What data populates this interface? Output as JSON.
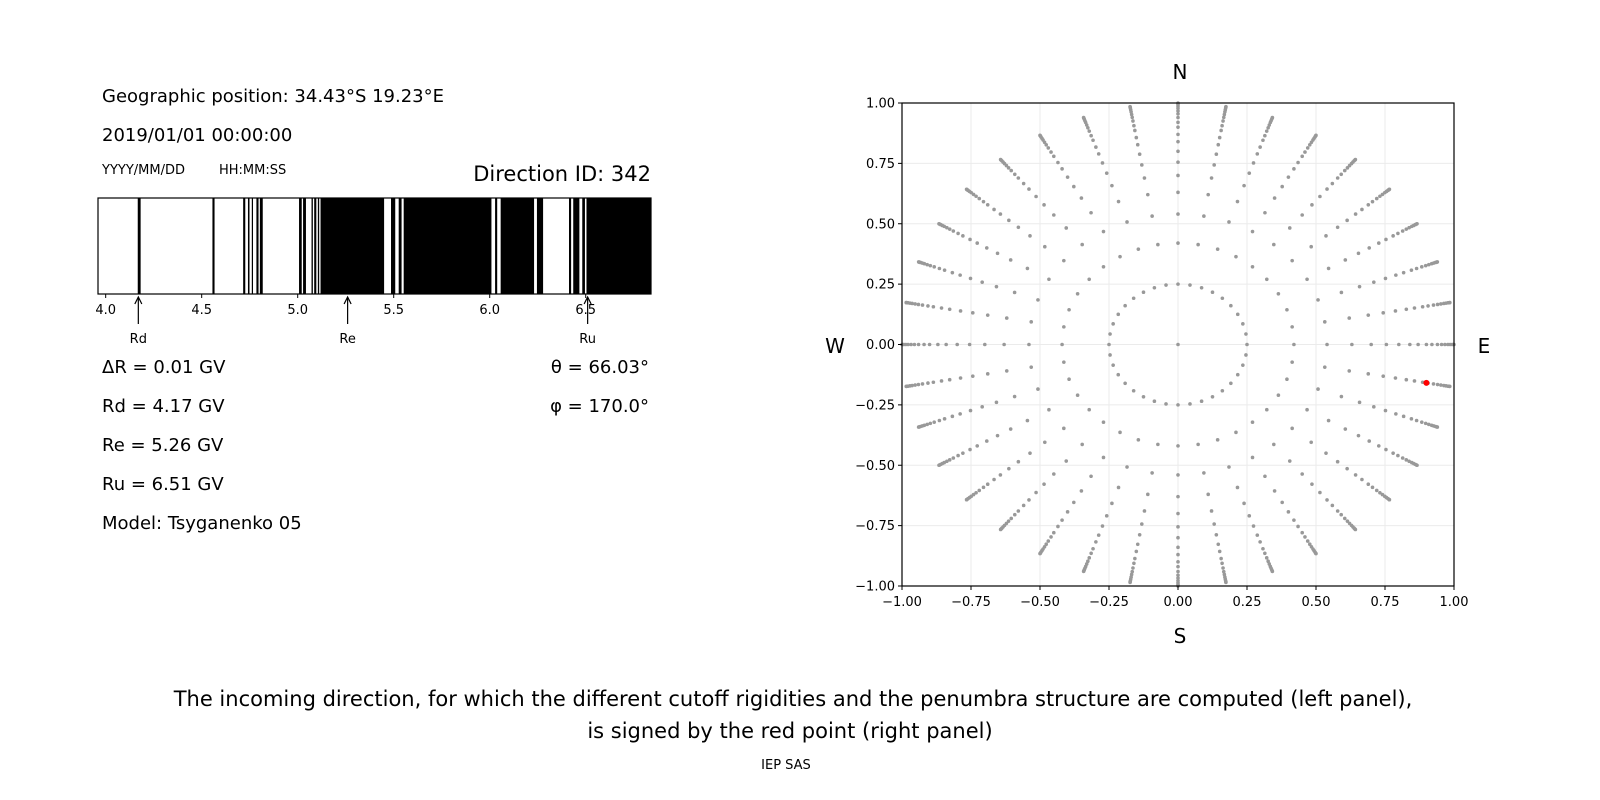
{
  "left_panel": {
    "geo_position": "Geographic position: 34.43°S 19.23°E",
    "datetime": "2019/01/01 00:00:00",
    "date_format": "YYYY/MM/DD",
    "time_format": "HH:MM:SS",
    "direction_id": "Direction ID: 342",
    "delta_r": "ΔR = 0.01 GV",
    "rd": "Rd = 4.17 GV",
    "re": "Re = 5.26 GV",
    "ru": "Ru = 6.51 GV",
    "model": "Model: Tsyganenko 05",
    "theta": "θ = 66.03°",
    "phi": "φ = 170.0°"
  },
  "compass": {
    "n": "N",
    "s": "S",
    "w": "W",
    "e": "E"
  },
  "caption": {
    "line1": "The incoming direction, for which the different cutoff rigidities and the penumbra structure are computed (left panel),",
    "line2": "is signed by the red point (right panel)",
    "footer": "IEP SAS"
  },
  "chart_data": [
    {
      "type": "penumbra-bar",
      "xlabel": "",
      "xlim": [
        3.96,
        6.84
      ],
      "xticks": [
        "4.0",
        "4.5",
        "5.0",
        "5.5",
        "6.0",
        "6.5"
      ],
      "tick_values": [
        4.0,
        4.5,
        5.0,
        5.5,
        6.0,
        6.5
      ],
      "forbidden_intervals_gv": [
        [
          4.167,
          4.182
        ],
        [
          4.556,
          4.567
        ],
        [
          4.716,
          4.727
        ],
        [
          4.741,
          4.749
        ],
        [
          4.761,
          4.767
        ],
        [
          4.785,
          4.796
        ],
        [
          4.803,
          4.818
        ],
        [
          5.007,
          5.021
        ],
        [
          5.028,
          5.043
        ],
        [
          5.072,
          5.079
        ],
        [
          5.086,
          5.097
        ],
        [
          5.105,
          5.112
        ],
        [
          5.119,
          5.45
        ],
        [
          5.486,
          5.508
        ],
        [
          5.526,
          5.541
        ],
        [
          5.552,
          6.009
        ],
        [
          6.028,
          6.039
        ],
        [
          6.057,
          6.231
        ],
        [
          6.246,
          6.278
        ],
        [
          6.413,
          6.424
        ],
        [
          6.435,
          6.467
        ],
        [
          6.482,
          6.496
        ],
        [
          6.504,
          6.84
        ]
      ],
      "colors": {
        "allowed": "#ffffff",
        "forbidden": "#000000"
      },
      "markers": [
        {
          "label": "Rd",
          "value": 4.17
        },
        {
          "label": "Re",
          "value": 5.26
        },
        {
          "label": "Ru",
          "value": 6.51
        }
      ]
    },
    {
      "type": "scatter",
      "xlim": [
        -1.0,
        1.0
      ],
      "ylim": [
        -1.0,
        1.0
      ],
      "xticks": [
        "−1.00",
        "−0.75",
        "−0.50",
        "−0.25",
        "0.00",
        "0.25",
        "0.50",
        "0.75",
        "1.00"
      ],
      "yticks": [
        "−1.00",
        "−0.75",
        "−0.50",
        "−0.25",
        "0.00",
        "0.25",
        "0.50",
        "0.75",
        "1.00"
      ],
      "tick_values": [
        -1.0,
        -0.75,
        -0.5,
        -0.25,
        0,
        0.25,
        0.5,
        0.75,
        1.0
      ],
      "grid": true,
      "directions": {
        "azimuth_step_deg": 10,
        "center": [
          0,
          0
        ],
        "inner_ring_radius": 0.25,
        "ray_radii": [
          0.42,
          0.54,
          0.63,
          0.7,
          0.755,
          0.8,
          0.84,
          0.87,
          0.9,
          0.92,
          0.94,
          0.955,
          0.967,
          0.978,
          0.986,
          0.993,
          0.998,
          1.0
        ],
        "color": "#999999"
      },
      "selected_point": {
        "x": 0.9,
        "y": -0.159,
        "color": "#ff0000"
      }
    }
  ]
}
